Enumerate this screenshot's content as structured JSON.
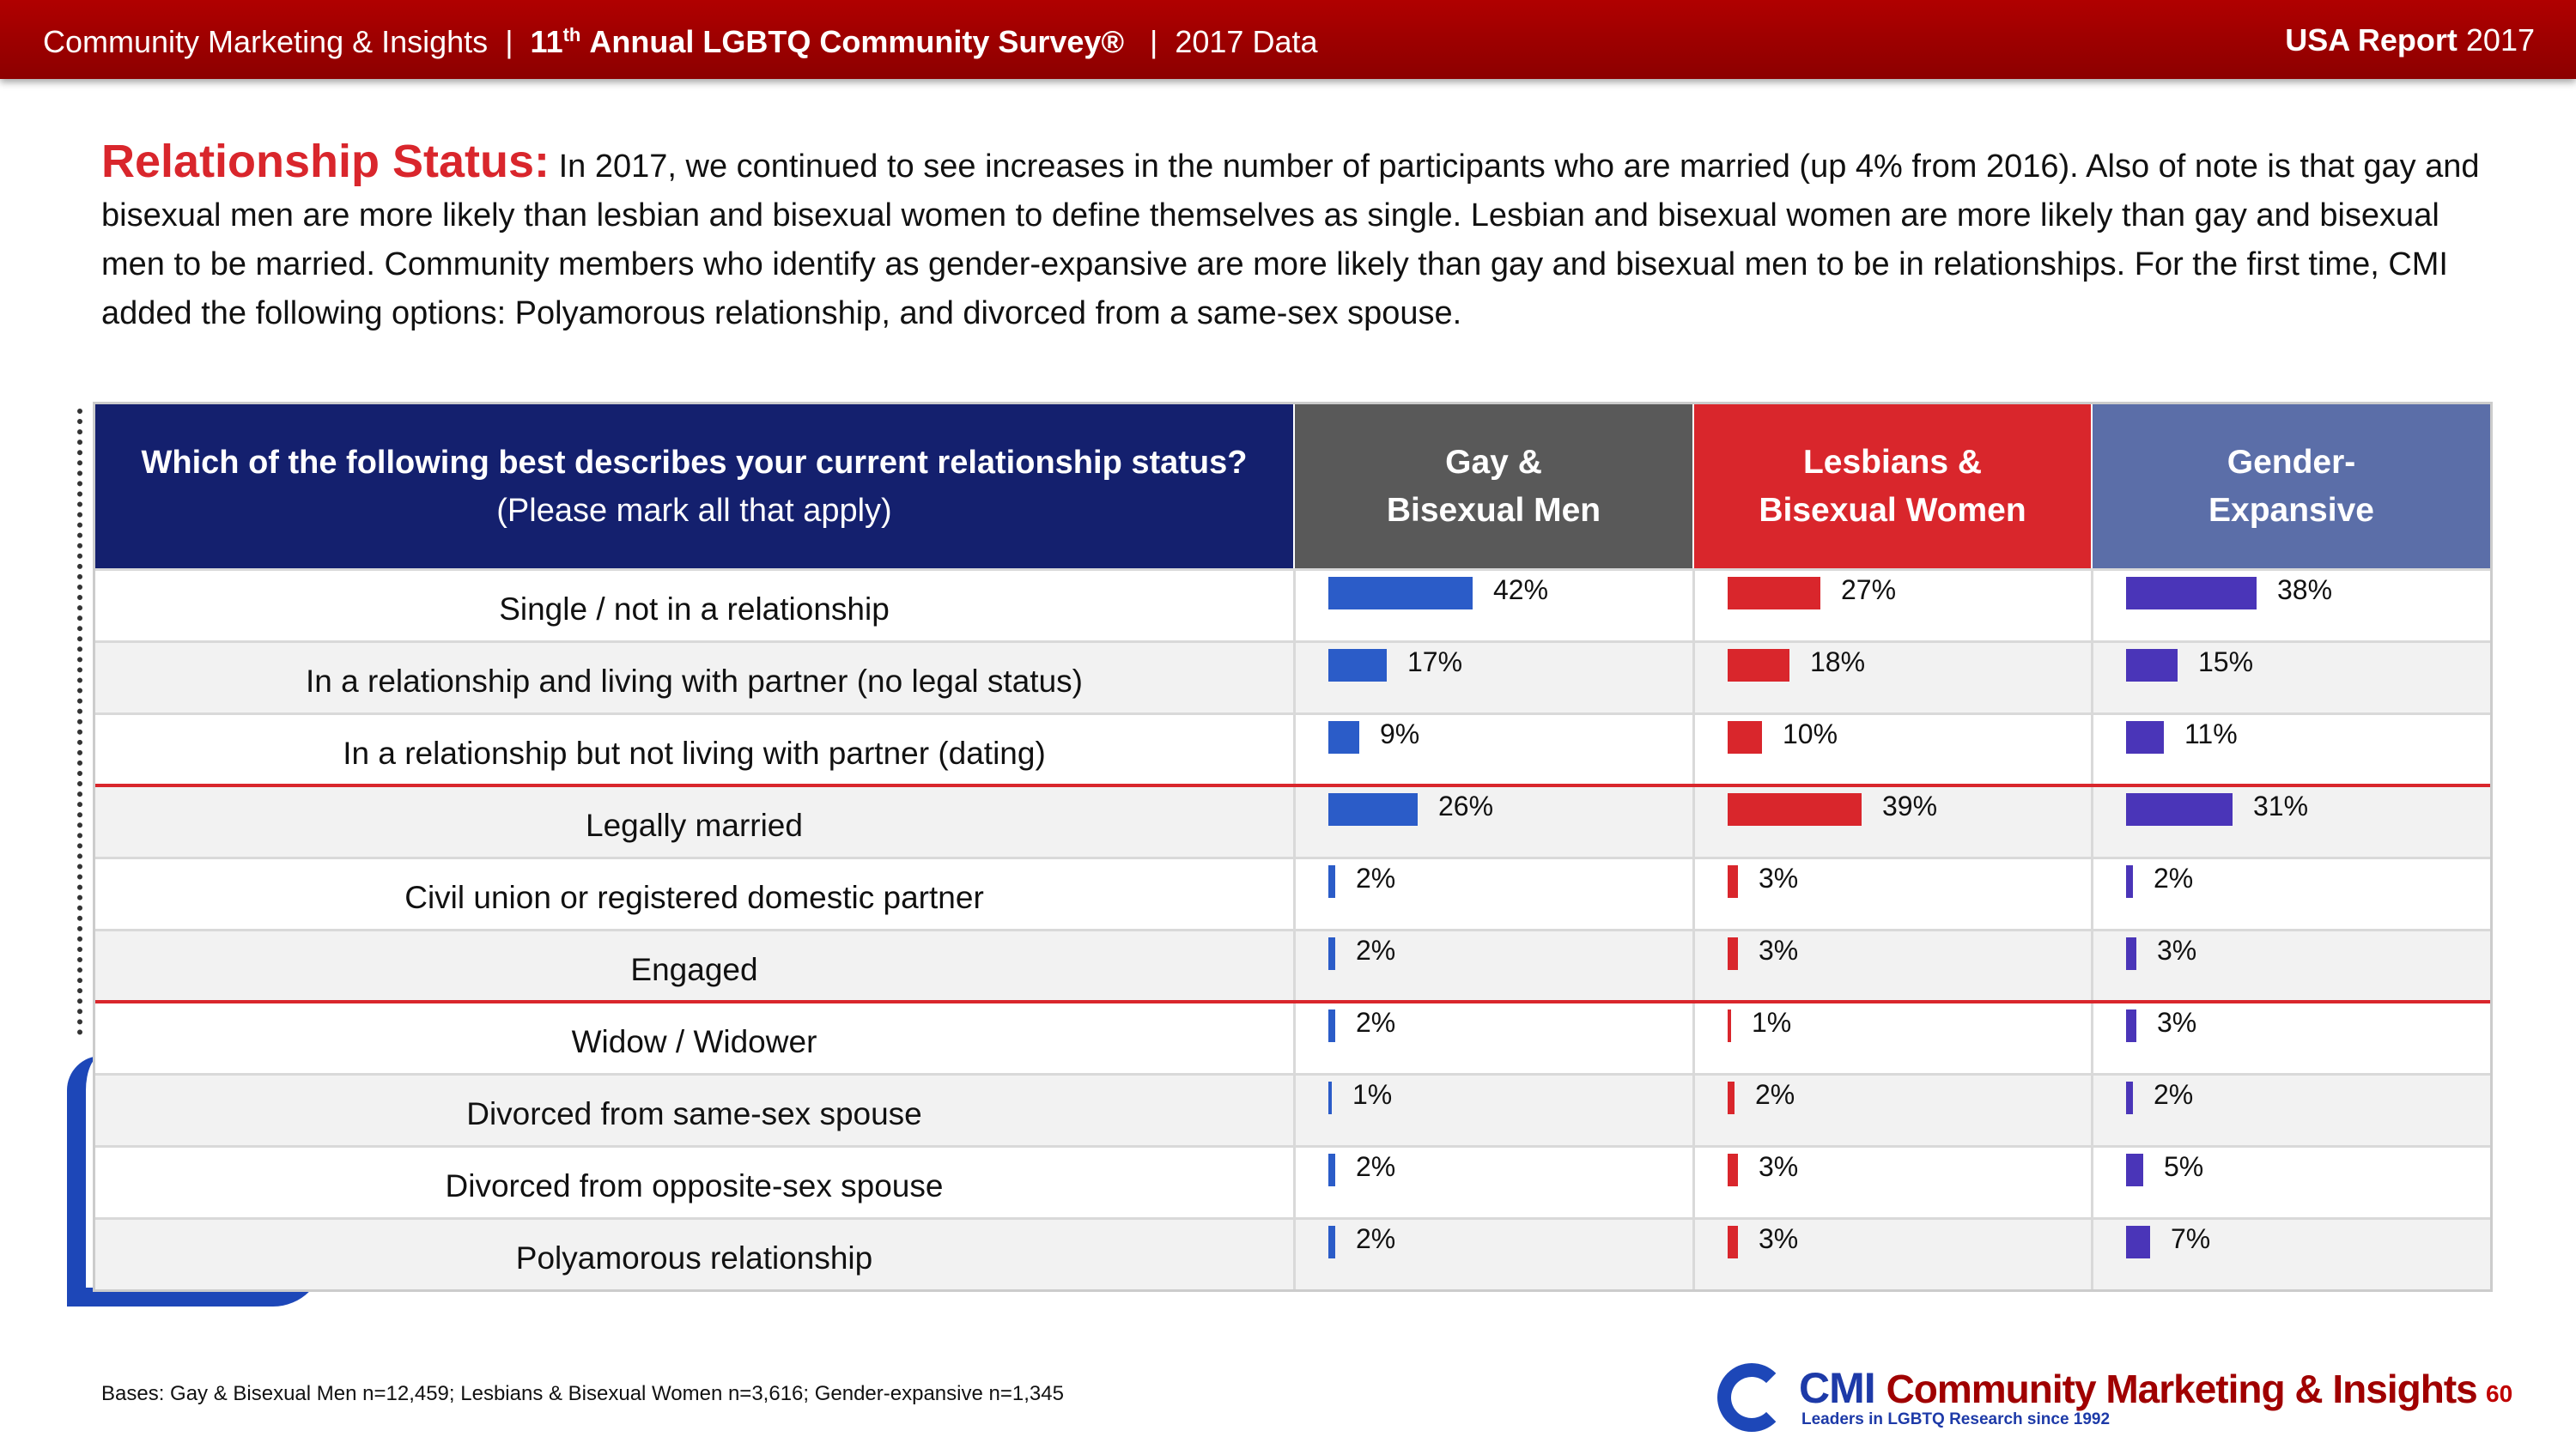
{
  "header": {
    "org": "Community Marketing & Insights",
    "survey_number": "11",
    "survey_suffix": "th",
    "survey_name": "Annual LGBTQ Community Survey®",
    "data_year": "2017 Data",
    "report": "USA Report",
    "report_year": "2017"
  },
  "intro": {
    "heading": "Relationship Status:",
    "text": "In 2017, we continued to see increases in the number of participants who are married (up 4% from 2016). Also of note is that gay and bisexual men are more likely than lesbian and bisexual women to define themselves as single. Lesbian and bisexual women are more likely than gay and bisexual men to be married. Community members who identify as gender-expansive are more likely than gay and bisexual men to be in relationships. For the first time, CMI added the following options: Polyamorous relationship, and divorced from a same-sex spouse."
  },
  "table": {
    "question": "Which of the following best describes your current relationship status?",
    "note": "(Please mark all that apply)",
    "columns": [
      {
        "name": [
          "Gay &",
          "Bisexual Men"
        ],
        "header_color": "#595959",
        "color": "#2b5cc8"
      },
      {
        "name": [
          "Lesbians &",
          "Bisexual Women"
        ],
        "header_color": "#d9262c",
        "color": "#d9262c"
      },
      {
        "name": [
          "Gender-",
          "Expansive"
        ],
        "header_color": "#5b6ea8",
        "color": "#4a35b8"
      }
    ],
    "rows": [
      {
        "label": "Single / not in a relationship",
        "values": [
          42,
          27,
          38
        ],
        "value_labels": [
          "42%",
          "27%",
          "38%"
        ]
      },
      {
        "label": "In a relationship and living with partner (no legal status)",
        "values": [
          17,
          18,
          15
        ],
        "value_labels": [
          "17%",
          "18%",
          "15%"
        ]
      },
      {
        "label": "In a relationship but not living with partner (dating)",
        "values": [
          9,
          10,
          11
        ],
        "value_labels": [
          "9%",
          "10%",
          "11%"
        ]
      },
      {
        "label": "Legally married",
        "values": [
          26,
          39,
          31
        ],
        "value_labels": [
          "26%",
          "39%",
          "31%"
        ]
      },
      {
        "label": "Civil union or registered domestic partner",
        "values": [
          2,
          3,
          2
        ],
        "value_labels": [
          "2%",
          "3%",
          "2%"
        ]
      },
      {
        "label": "Engaged",
        "values": [
          2,
          3,
          3
        ],
        "value_labels": [
          "2%",
          "3%",
          "3%"
        ]
      },
      {
        "label": "Widow / Widower",
        "values": [
          2,
          1,
          3
        ],
        "value_labels": [
          "2%",
          "1%",
          "3%"
        ]
      },
      {
        "label": "Divorced from same-sex spouse",
        "values": [
          1,
          2,
          2
        ],
        "value_labels": [
          "1%",
          "2%",
          "2%"
        ]
      },
      {
        "label": "Divorced from opposite-sex spouse",
        "values": [
          2,
          3,
          5
        ],
        "value_labels": [
          "2%",
          "3%",
          "5%"
        ]
      },
      {
        "label": "Polyamorous relationship",
        "values": [
          2,
          3,
          7
        ],
        "value_labels": [
          "2%",
          "3%",
          "7%"
        ]
      }
    ]
  },
  "footer": {
    "bases": "Bases: Gay & Bisexual Men n=12,459; Lesbians & Bisexual Women n=3,616; Gender-expansive n=1,345",
    "logo": "CMI",
    "company": "Community Marketing & Insights",
    "tagline": "Leaders in LGBTQ Research since 1992",
    "page": "60"
  }
}
